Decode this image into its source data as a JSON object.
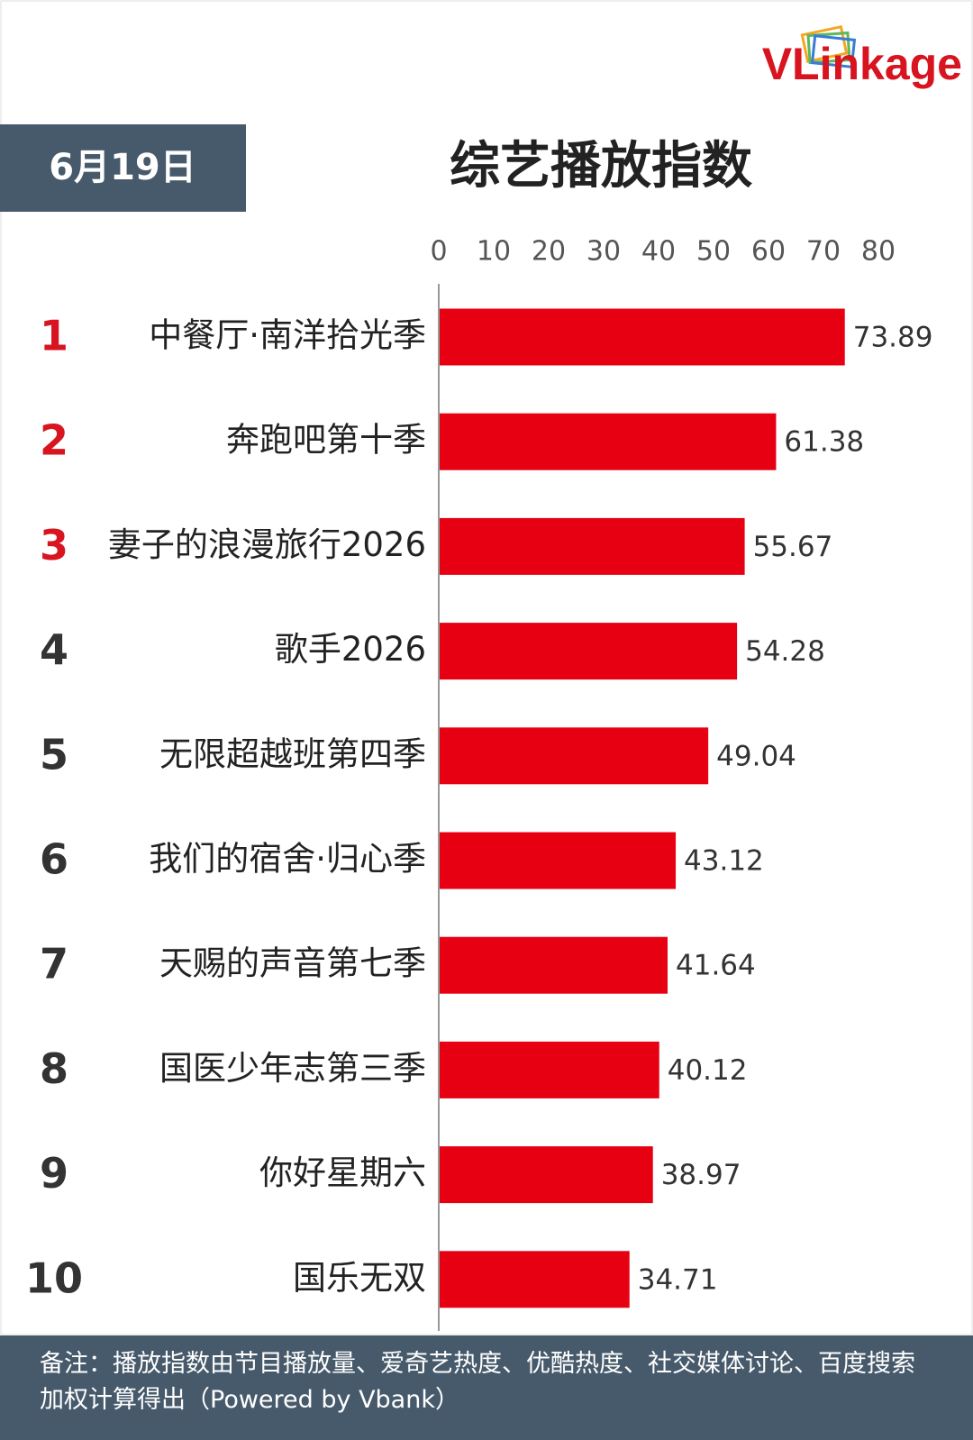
{
  "chart_data": {
    "type": "bar",
    "orientation": "horizontal",
    "logo": "VLinkage",
    "date": "6月19日",
    "title": "综艺播放指数",
    "ranks": [
      1,
      2,
      3,
      4,
      5,
      6,
      7,
      8,
      9,
      10
    ],
    "rank_colors": [
      "#d7141f",
      "#d7141f",
      "#d7141f",
      "#333333",
      "#333333",
      "#333333",
      "#333333",
      "#333333",
      "#333333",
      "#333333"
    ],
    "categories": [
      "中餐厅·南洋拾光季",
      "奔跑吧第十季",
      "妻子的浪漫旅行2026",
      "歌手2026",
      "无限超越班第四季",
      "我们的宿舍·归心季",
      "天赐的声音第七季",
      "国医少年志第三季",
      "你好星期六",
      "国乐无双"
    ],
    "values": [
      73.89,
      61.38,
      55.67,
      54.28,
      49.04,
      43.12,
      41.64,
      40.12,
      38.97,
      34.71
    ],
    "color": "#e60012",
    "xlim": [
      0,
      80
    ],
    "xticks": [
      0,
      10,
      20,
      30,
      40,
      50,
      60,
      70,
      80
    ],
    "note": "备注：播放指数由节目播放量、爱奇艺热度、优酷热度、社交媒体讨论、百度搜索加权计算得出（Powered by Vbank）"
  }
}
